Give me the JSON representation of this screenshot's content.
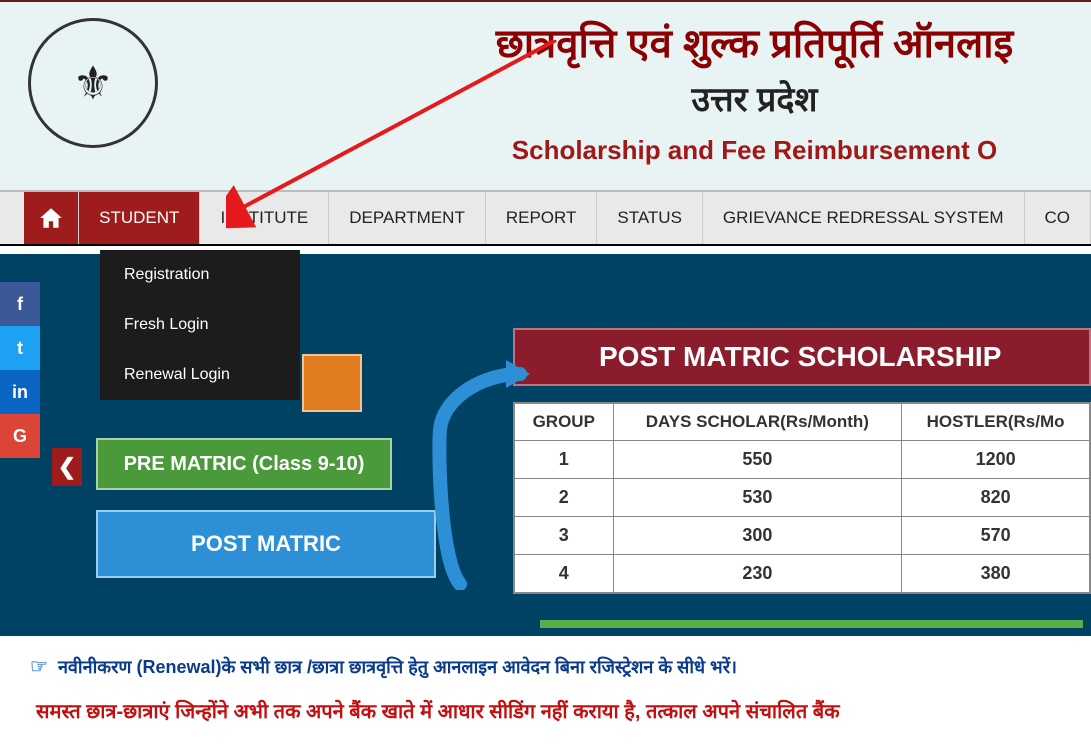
{
  "header": {
    "title_hi": "छात्रवृत्ति एवं शुल्क प्रतिपूर्ति ऑनलाइ",
    "subtitle_hi": "उत्तर प्रदेश",
    "title_en": "Scholarship and Fee Reimbursement O",
    "logo_glyph": "⚜",
    "band_bg": "#e8f4f4",
    "title_hi_color": "#8b0000",
    "subtitle_hi_color": "#222222",
    "title_en_color": "#a11818"
  },
  "nav": {
    "items": [
      {
        "label": "STUDENT",
        "active": true
      },
      {
        "label": "INSTITUTE"
      },
      {
        "label": "DEPARTMENT"
      },
      {
        "label": "REPORT"
      },
      {
        "label": "STATUS"
      },
      {
        "label": "GRIEVANCE REDRESSAL SYSTEM"
      },
      {
        "label": "CO"
      }
    ],
    "active_bg": "#9e1c1c",
    "bg": "#e9e9e9"
  },
  "dropdown": {
    "items": [
      {
        "label": "Registration"
      },
      {
        "label": "Fresh Login"
      },
      {
        "label": "Renewal Login"
      }
    ],
    "bg": "#1c1c1c"
  },
  "annotation": {
    "arrow_color": "#e41a1c"
  },
  "social": {
    "items": [
      {
        "glyph": "f",
        "bg": "#3b5998",
        "name": "facebook"
      },
      {
        "glyph": "t",
        "bg": "#1da1f2",
        "name": "twitter"
      },
      {
        "glyph": "in",
        "bg": "#0a66c2",
        "name": "linkedin"
      },
      {
        "glyph": "G",
        "bg": "#db4437",
        "name": "google"
      }
    ]
  },
  "carousel": {
    "chevron_glyph": "❮",
    "chevron_bg": "#9e1c1c",
    "categories": {
      "orange_bg": "#e07b1e",
      "green_label": "PRE MATRIC (Class 9-10)",
      "green_bg": "#4a9a3c",
      "blue_label": "POST MATRIC",
      "blue_bg": "#2d8fd6"
    },
    "arrow_color": "#2d8fd6"
  },
  "scholarship": {
    "banner_label": "POST MATRIC SCHOLARSHIP",
    "banner_bg": "#8b1c2c",
    "columns": [
      "GROUP",
      "DAYS SCHOLAR(Rs/Month)",
      "HOSTLER(Rs/Mo"
    ],
    "rows": [
      [
        "1",
        "550",
        "1200"
      ],
      [
        "2",
        "530",
        "820"
      ],
      [
        "3",
        "300",
        "570"
      ],
      [
        "4",
        "230",
        "380"
      ]
    ],
    "underline_color": "#5aae4a"
  },
  "notices": {
    "n1": "नवीनीकरण (Renewal)के सभी छात्र /छात्रा छात्रवृत्ति हेतु आनलाइन आवेदन बिना रजिस्ट्रेशन के सीधे भरें।",
    "n1_color": "#0b3c8c",
    "hand_glyph": "☞",
    "n2": "समस्त छात्र-छात्राएं जिन्होंने अभी तक अपने बैंक खाते में आधार सीडिंग नहीं कराया है, तत्काल अपने संचालित बैंक",
    "n2_color": "#c21010"
  },
  "content": {
    "bg": "#004263"
  }
}
